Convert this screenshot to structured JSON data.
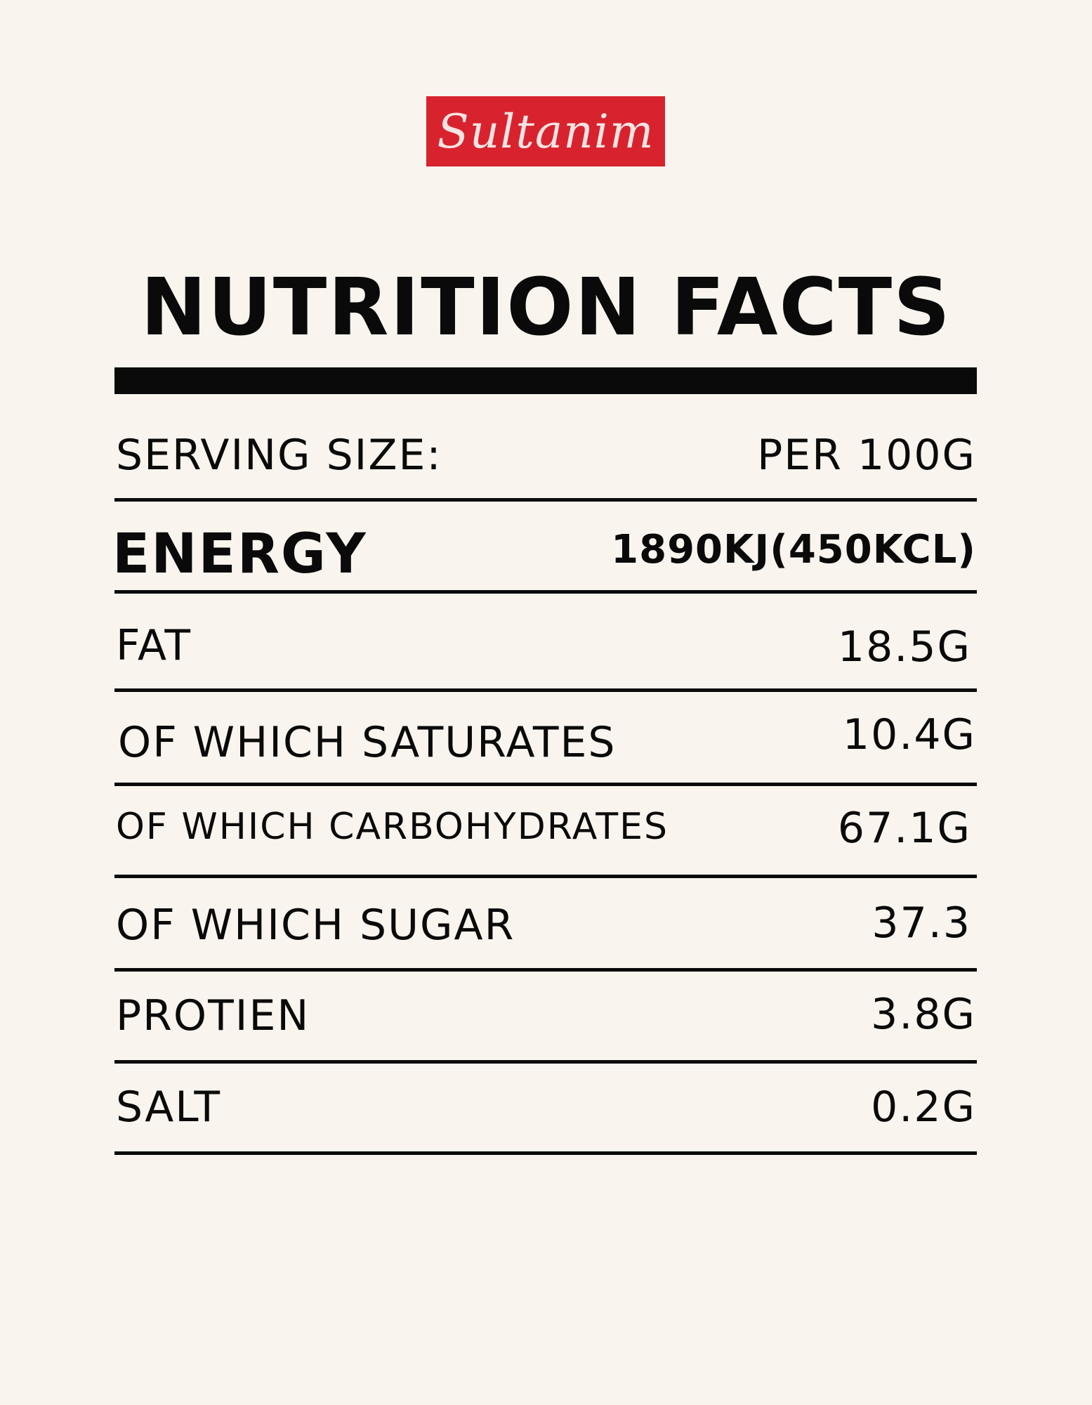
{
  "brand": {
    "logo_text": "Sultanim",
    "color": "#d8232f"
  },
  "title": "NUTRITION FACTS",
  "serving": {
    "label": "SERVING SIZE:",
    "value": "PER 100G"
  },
  "rows": [
    {
      "label": "ENERGY",
      "value": "1890KJ(450KCL)"
    },
    {
      "label": "FAT",
      "value": "18.5G"
    },
    {
      "label": "OF WHICH SATURATES",
      "value": "10.4G"
    },
    {
      "label": "OF WHICH CARBOHYDRATES",
      "value": "67.1G"
    },
    {
      "label": "OF WHICH SUGAR",
      "value": "37.3"
    },
    {
      "label": "PROTIEN",
      "value": "3.8G"
    },
    {
      "label": "SALT",
      "value": "0.2G"
    }
  ]
}
